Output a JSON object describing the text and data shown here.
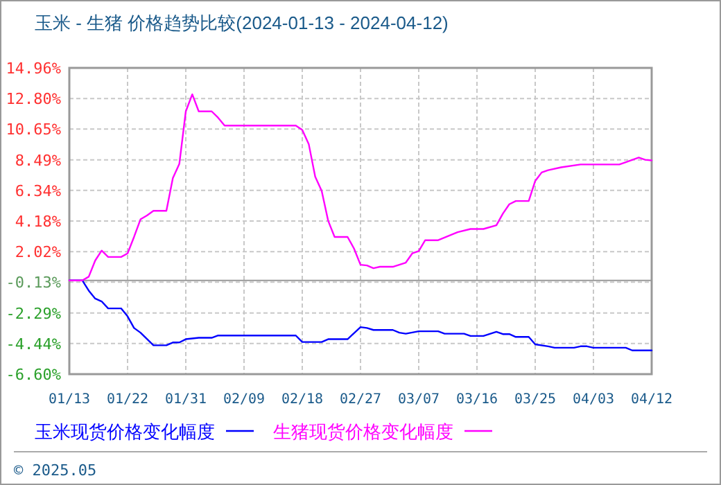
{
  "chart_data": {
    "type": "line",
    "title": "玉米 - 生猪 价格趋势比较(2024-01-13 - 2024-04-12)",
    "xlim": [
      "2024-01-13",
      "2024-04-12"
    ],
    "xticks": [
      {
        "value": "2024-01-13",
        "label": "01/13"
      },
      {
        "value": "2024-01-22",
        "label": "01/22"
      },
      {
        "value": "2024-01-31",
        "label": "01/31"
      },
      {
        "value": "2024-02-09",
        "label": "02/09"
      },
      {
        "value": "2024-02-18",
        "label": "02/18"
      },
      {
        "value": "2024-02-27",
        "label": "02/27"
      },
      {
        "value": "2024-03-07",
        "label": "03/07"
      },
      {
        "value": "2024-03-16",
        "label": "03/16"
      },
      {
        "value": "2024-03-25",
        "label": "03/25"
      },
      {
        "value": "2024-04-03",
        "label": "04/03"
      },
      {
        "value": "2024-04-12",
        "label": "04/12"
      }
    ],
    "ylim": [
      -6.6,
      14.96
    ],
    "yticks": [
      {
        "value": -6.6,
        "label": "-6.60%"
      },
      {
        "value": -4.44,
        "label": "-4.44%"
      },
      {
        "value": -2.29,
        "label": "-2.29%"
      },
      {
        "value": -0.13,
        "label": "-0.13%"
      },
      {
        "value": 2.02,
        "label": "2.02%"
      },
      {
        "value": 4.18,
        "label": "4.18%"
      },
      {
        "value": 6.34,
        "label": "6.34%"
      },
      {
        "value": 8.49,
        "label": "8.49%"
      },
      {
        "value": 10.65,
        "label": "10.65%"
      },
      {
        "value": 12.8,
        "label": "12.80%"
      },
      {
        "value": 14.96,
        "label": "14.96%"
      }
    ],
    "grid": true,
    "legend": "bottom",
    "line_style": "solid",
    "marker": "none",
    "annotations": [
      "© 2025.05"
    ],
    "series": [
      {
        "name": "玉米现货价格变化幅度",
        "color": "#0000ff",
        "x": [
          "2024-01-13",
          "2024-01-15",
          "2024-01-16",
          "2024-01-17",
          "2024-01-18",
          "2024-01-19",
          "2024-01-21",
          "2024-01-22",
          "2024-01-23",
          "2024-01-24",
          "2024-01-26",
          "2024-01-28",
          "2024-01-29",
          "2024-01-30",
          "2024-01-31",
          "2024-02-02",
          "2024-02-04",
          "2024-02-05",
          "2024-02-17",
          "2024-02-18",
          "2024-02-21",
          "2024-02-22",
          "2024-02-25",
          "2024-02-27",
          "2024-02-28",
          "2024-02-29",
          "2024-03-03",
          "2024-03-04",
          "2024-03-05",
          "2024-03-07",
          "2024-03-10",
          "2024-03-11",
          "2024-03-14",
          "2024-03-15",
          "2024-03-17",
          "2024-03-19",
          "2024-03-20",
          "2024-03-21",
          "2024-03-22",
          "2024-03-24",
          "2024-03-25",
          "2024-03-27",
          "2024-03-28",
          "2024-03-31",
          "2024-04-01",
          "2024-04-02",
          "2024-04-03",
          "2024-04-08",
          "2024-04-09",
          "2024-04-12"
        ],
        "values": [
          0,
          0,
          -0.72,
          -1.28,
          -1.48,
          -1.97,
          -1.97,
          -2.53,
          -3.35,
          -3.68,
          -4.57,
          -4.57,
          -4.37,
          -4.37,
          -4.14,
          -4.04,
          -4.04,
          -3.88,
          -3.88,
          -4.34,
          -4.34,
          -4.14,
          -4.14,
          -3.29,
          -3.35,
          -3.49,
          -3.49,
          -3.68,
          -3.75,
          -3.58,
          -3.58,
          -3.75,
          -3.75,
          -3.91,
          -3.91,
          -3.62,
          -3.78,
          -3.78,
          -3.98,
          -3.98,
          -4.5,
          -4.64,
          -4.74,
          -4.74,
          -4.64,
          -4.64,
          -4.74,
          -4.74,
          -4.93,
          -4.93
        ]
      },
      {
        "name": "生猪现货价格变化幅度",
        "color": "#ff00ff",
        "x": [
          "2024-01-13",
          "2024-01-15",
          "2024-01-16",
          "2024-01-17",
          "2024-01-18",
          "2024-01-19",
          "2024-01-21",
          "2024-01-22",
          "2024-01-23",
          "2024-01-24",
          "2024-01-25",
          "2024-01-26",
          "2024-01-28",
          "2024-01-29",
          "2024-01-30",
          "2024-01-31",
          "2024-02-01",
          "2024-02-02",
          "2024-02-04",
          "2024-02-05",
          "2024-02-06",
          "2024-02-17",
          "2024-02-18",
          "2024-02-19",
          "2024-02-20",
          "2024-02-21",
          "2024-02-22",
          "2024-02-23",
          "2024-02-25",
          "2024-02-26",
          "2024-02-27",
          "2024-02-28",
          "2024-02-29",
          "2024-03-01",
          "2024-03-03",
          "2024-03-05",
          "2024-03-06",
          "2024-03-07",
          "2024-03-08",
          "2024-03-10",
          "2024-03-13",
          "2024-03-15",
          "2024-03-17",
          "2024-03-19",
          "2024-03-20",
          "2024-03-21",
          "2024-03-22",
          "2024-03-24",
          "2024-03-25",
          "2024-03-26",
          "2024-03-27",
          "2024-03-29",
          "2024-04-01",
          "2024-04-07",
          "2024-04-08",
          "2024-04-10",
          "2024-04-11",
          "2024-04-12"
        ],
        "values": [
          0,
          0,
          0.26,
          1.4,
          2.1,
          1.65,
          1.65,
          1.9,
          3.06,
          4.3,
          4.57,
          4.9,
          4.9,
          7.2,
          8.2,
          11.9,
          13.1,
          11.9,
          11.9,
          11.45,
          10.9,
          10.9,
          10.6,
          9.6,
          7.3,
          6.3,
          4.2,
          3.06,
          3.06,
          2.24,
          1.1,
          1.05,
          0.86,
          0.96,
          0.96,
          1.25,
          1.9,
          2.07,
          2.83,
          2.83,
          3.39,
          3.62,
          3.62,
          3.88,
          4.7,
          5.36,
          5.59,
          5.59,
          7.0,
          7.6,
          7.76,
          7.96,
          8.16,
          8.16,
          8.32,
          8.65,
          8.49,
          8.45
        ]
      }
    ]
  }
}
